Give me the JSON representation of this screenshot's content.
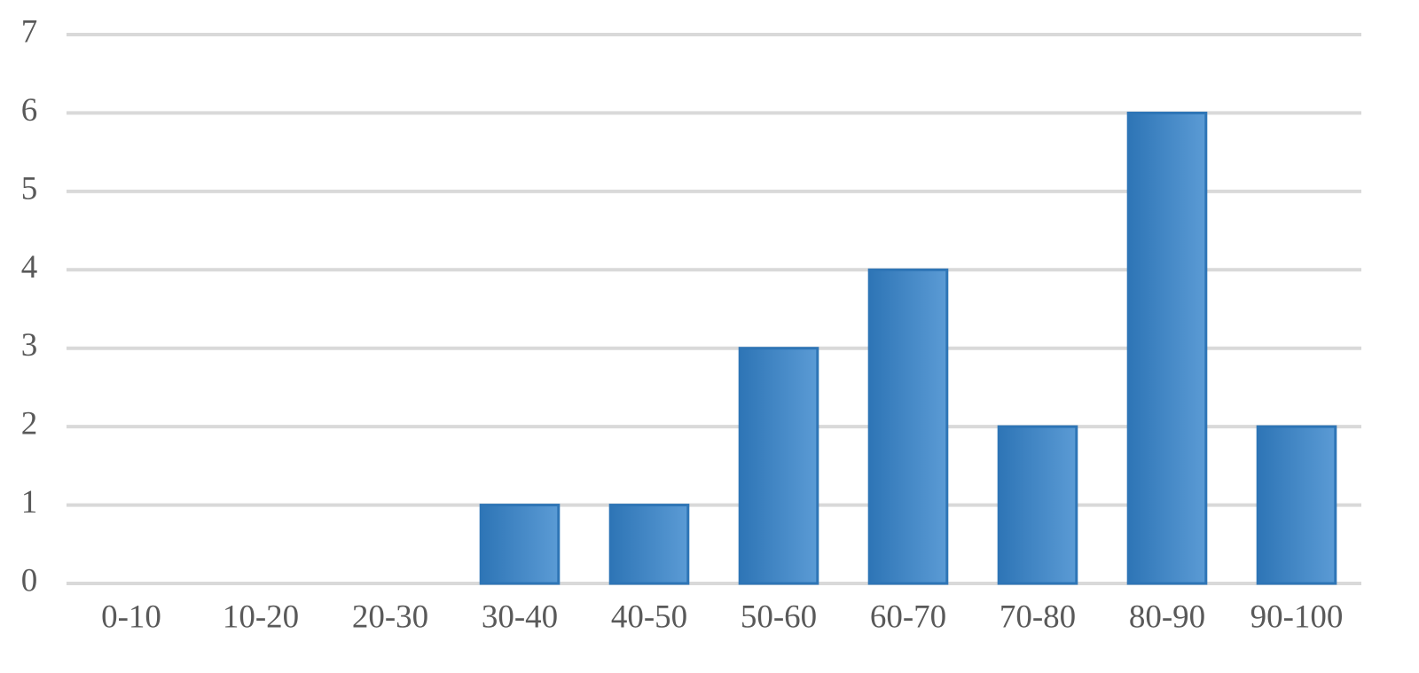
{
  "chart_data": {
    "type": "bar",
    "categories": [
      "0-10",
      "10-20",
      "20-30",
      "30-40",
      "40-50",
      "50-60",
      "60-70",
      "70-80",
      "80-90",
      "90-100"
    ],
    "values": [
      0,
      0,
      0,
      1,
      1,
      3,
      4,
      2,
      6,
      2
    ],
    "color": "#2e75b6",
    "ylim": [
      0,
      7
    ],
    "yticks": [
      0,
      1,
      2,
      3,
      4,
      5,
      6,
      7
    ],
    "grid": true
  }
}
